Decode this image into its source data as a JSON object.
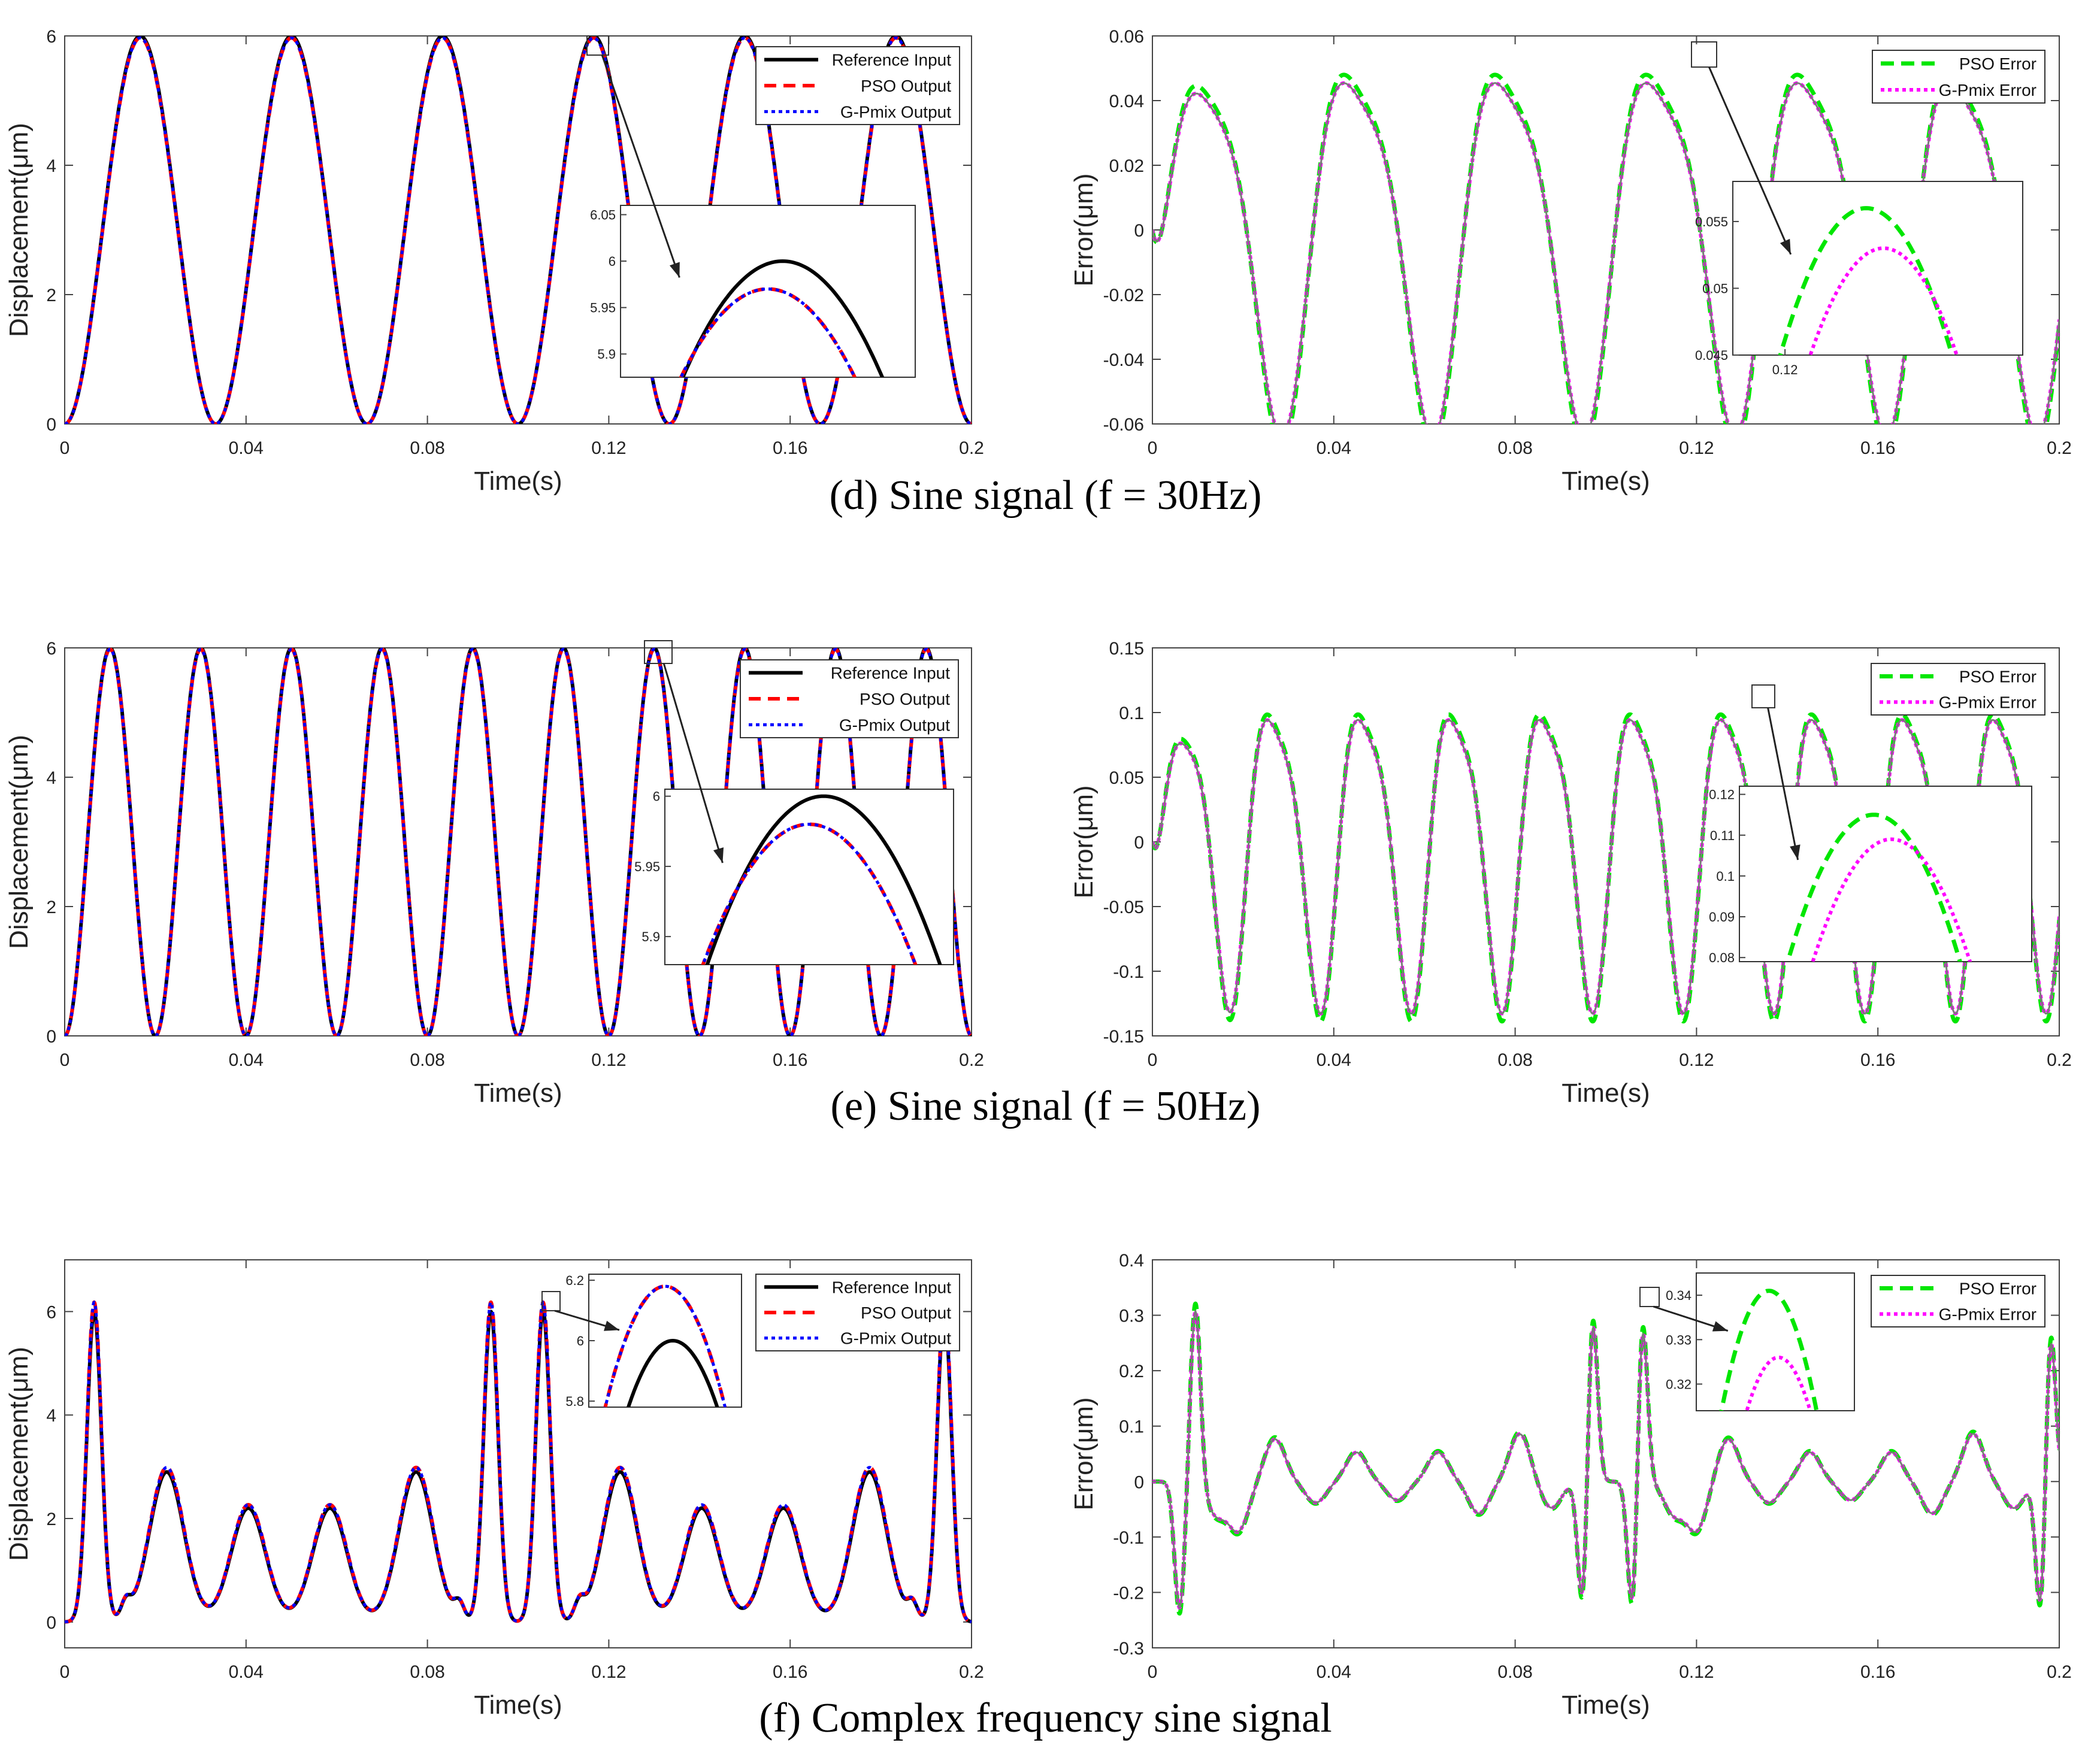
{
  "captions": [
    "(d) Sine signal (f = 30Hz)",
    "(e) Sine signal (f = 50Hz)",
    "(f) Complex frequency sine signal"
  ],
  "colors": {
    "reference": "#000000",
    "pso_output": "#ff0000",
    "gpmix_output": "#0000ff",
    "pso_error": "#00e600",
    "gpmix_error": "#ff00ff",
    "error_core": "#7a7a7a"
  },
  "chart_data": [
    {
      "id": "d-displacement",
      "type": "line",
      "signal": "sine",
      "freq_hz": 30,
      "xlabel": "Time(s)",
      "ylabel": "Displacement(μm)",
      "xlim": [
        0,
        0.2
      ],
      "ylim": [
        0,
        6
      ],
      "xticks": [
        "0",
        "0.04",
        "0.08",
        "0.12",
        "0.16",
        "0.2"
      ],
      "yticks": [
        "0",
        "2",
        "4",
        "6"
      ],
      "legend_position": "top-right",
      "series": [
        {
          "name": "Reference Input",
          "style": "solid",
          "formula": "3 - 3cos(2π·30·t)"
        },
        {
          "name": "PSO Output",
          "style": "dashed",
          "peak": 5.97
        },
        {
          "name": "G-Pmix Output",
          "style": "dotted",
          "peak": 5.97
        }
      ],
      "inset": {
        "yticks": [
          "5.9",
          "5.95",
          "6",
          "6.05"
        ],
        "ylim": [
          5.875,
          6.06
        ],
        "xticks": [],
        "peak_reference": 6.0,
        "peak_output": 5.97
      }
    },
    {
      "id": "d-error",
      "type": "line",
      "signal": "sine",
      "freq_hz": 30,
      "xlabel": "Time(s)",
      "ylabel": "Error(μm)",
      "xlim": [
        0,
        0.2
      ],
      "ylim": [
        -0.06,
        0.06
      ],
      "xticks": [
        "0",
        "0.04",
        "0.08",
        "0.12",
        "0.16",
        "0.2"
      ],
      "yticks": [
        "-0.06",
        "-0.04",
        "-0.02",
        "0",
        "0.02",
        "0.04",
        "0.06"
      ],
      "legend_position": "top-right",
      "series": [
        {
          "name": "PSO Error",
          "style": "dashed",
          "amplitude": 0.056
        },
        {
          "name": "G-Pmix Error",
          "style": "dotted",
          "amplitude": 0.053
        }
      ],
      "inset": {
        "yticks": [
          "0.045",
          "0.05",
          "0.055"
        ],
        "ylim": [
          0.045,
          0.058
        ],
        "xticks": [
          "0.12"
        ],
        "peak_pso": 0.056,
        "peak_gpmix": 0.053
      }
    },
    {
      "id": "e-displacement",
      "type": "line",
      "signal": "sine",
      "freq_hz": 50,
      "xlabel": "Time(s)",
      "ylabel": "Displacement(μm)",
      "xlim": [
        0,
        0.2
      ],
      "ylim": [
        0,
        6
      ],
      "xticks": [
        "0",
        "0.04",
        "0.08",
        "0.12",
        "0.16",
        "0.2"
      ],
      "yticks": [
        "0",
        "2",
        "4",
        "6"
      ],
      "legend_position": "top-right",
      "series": [
        {
          "name": "Reference Input",
          "style": "solid",
          "formula": "3 - 3cos(2π·50·t)"
        },
        {
          "name": "PSO Output",
          "style": "dashed",
          "peak": 5.98
        },
        {
          "name": "G-Pmix Output",
          "style": "dotted",
          "peak": 5.98
        }
      ],
      "inset": {
        "yticks": [
          "5.9",
          "5.95",
          "6"
        ],
        "ylim": [
          5.88,
          6.005
        ],
        "xticks": [],
        "peak_reference": 6.0,
        "peak_output": 5.98
      }
    },
    {
      "id": "e-error",
      "type": "line",
      "signal": "sine",
      "freq_hz": 50,
      "xlabel": "Time(s)",
      "ylabel": "Error(μm)",
      "xlim": [
        0,
        0.2
      ],
      "ylim": [
        -0.15,
        0.15
      ],
      "xticks": [
        "0",
        "0.04",
        "0.08",
        "0.12",
        "0.16",
        "0.2"
      ],
      "yticks": [
        "-0.15",
        "-0.1",
        "-0.05",
        "0",
        "0.05",
        "0.1",
        "0.15"
      ],
      "legend_position": "top-right",
      "series": [
        {
          "name": "PSO Error",
          "style": "dashed",
          "amplitude": 0.115
        },
        {
          "name": "G-Pmix Error",
          "style": "dotted",
          "amplitude": 0.11
        }
      ],
      "inset": {
        "yticks": [
          "0.08",
          "0.09",
          "0.1",
          "0.11",
          "0.12"
        ],
        "ylim": [
          0.079,
          0.122
        ],
        "xticks": [],
        "peak_pso": 0.115,
        "peak_gpmix": 0.109
      }
    },
    {
      "id": "f-displacement",
      "type": "line",
      "signal": "complex",
      "xlabel": "Time(s)",
      "ylabel": "Displacement(μm)",
      "xlim": [
        0,
        0.2
      ],
      "ylim": [
        -0.5,
        7
      ],
      "xticks": [
        "0",
        "0.04",
        "0.08",
        "0.12",
        "0.16",
        "0.2"
      ],
      "yticks": [
        "0",
        "2",
        "4",
        "6"
      ],
      "legend_position": "top-right",
      "series": [
        {
          "name": "Reference Input",
          "style": "solid",
          "peaks": [
            6.0,
            2.9,
            2.2,
            2.2,
            2.9,
            6.0,
            6.0,
            2.9,
            2.2,
            2.2,
            2.9,
            6.0
          ]
        },
        {
          "name": "PSO Output",
          "style": "dashed",
          "peak": 6.18
        },
        {
          "name": "G-Pmix Output",
          "style": "dotted",
          "peak": 6.18
        }
      ],
      "inset": {
        "yticks": [
          "5.8",
          "6",
          "6.2"
        ],
        "ylim": [
          5.78,
          6.22
        ],
        "xticks": [],
        "peak_reference": 6.0,
        "peak_output": 6.18
      }
    },
    {
      "id": "f-error",
      "type": "line",
      "signal": "complex",
      "xlabel": "Time(s)",
      "ylabel": "Error(μm)",
      "xlim": [
        0,
        0.2
      ],
      "ylim": [
        -0.3,
        0.4
      ],
      "xticks": [
        "0",
        "0.04",
        "0.08",
        "0.12",
        "0.16",
        "0.2"
      ],
      "yticks": [
        "-0.3",
        "-0.2",
        "-0.1",
        "0",
        "0.1",
        "0.2",
        "0.3",
        "0.4"
      ],
      "legend_position": "top-right",
      "series": [
        {
          "name": "PSO Error",
          "style": "dashed",
          "max": 0.34,
          "min": -0.26
        },
        {
          "name": "G-Pmix Error",
          "style": "dotted",
          "max": 0.325,
          "min": -0.26
        }
      ],
      "inset": {
        "yticks": [
          "0.32",
          "0.33",
          "0.34"
        ],
        "ylim": [
          0.314,
          0.345
        ],
        "xticks": [],
        "peak_pso": 0.341,
        "peak_gpmix": 0.326
      }
    }
  ]
}
